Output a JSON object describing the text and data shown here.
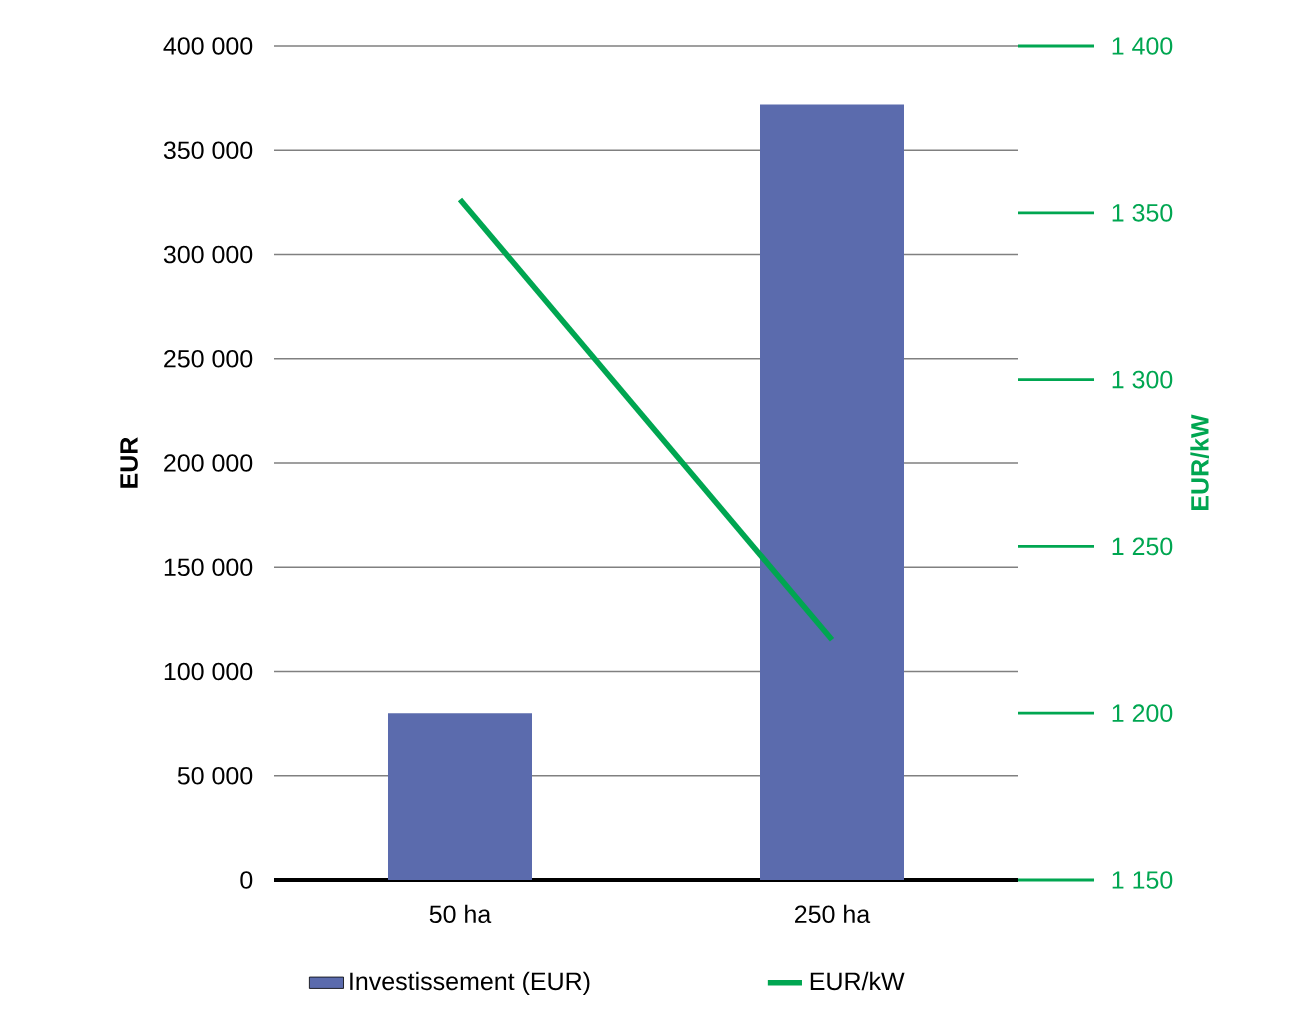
{
  "chart_data": {
    "type": "bar",
    "categories": [
      "50 ha",
      "250 ha"
    ],
    "ylabel": "EUR",
    "y2label": "EUR/kW",
    "series": [
      {
        "name": "Investissement (EUR)",
        "color": "#5b6bad",
        "values": [
          80000,
          372000
        ]
      },
      {
        "name": "EUR/kW",
        "type": "line",
        "axis": "y2",
        "color": "#00a651",
        "values": [
          1354,
          1222
        ]
      }
    ],
    "ylim": [
      0,
      400000
    ],
    "yticks": [
      0,
      {
        "value": 50000,
        "label": "50 000"
      },
      {
        "value": 100000,
        "label": "100 000"
      },
      {
        "value": 150000,
        "label": "150 000"
      },
      {
        "value": 200000,
        "label": "200 000"
      },
      {
        "value": 250000,
        "label": "250 000"
      },
      {
        "value": 300000,
        "label": "300 000"
      },
      {
        "value": 350000,
        "label": "350 000"
      },
      {
        "value": 400000,
        "label": "400 000"
      }
    ],
    "y2lim": [
      1150,
      1400
    ],
    "y2ticks": [
      {
        "value": 1150,
        "label": "1 150"
      },
      {
        "value": 1200,
        "label": "1 200"
      },
      {
        "value": 1250,
        "label": "1 250"
      },
      {
        "value": 1300,
        "label": "1 300"
      },
      {
        "value": 1350,
        "label": "1 350"
      },
      {
        "value": 1400,
        "label": "1 400"
      }
    ],
    "grid": "y",
    "legend": "bottom",
    "marker": "none"
  }
}
